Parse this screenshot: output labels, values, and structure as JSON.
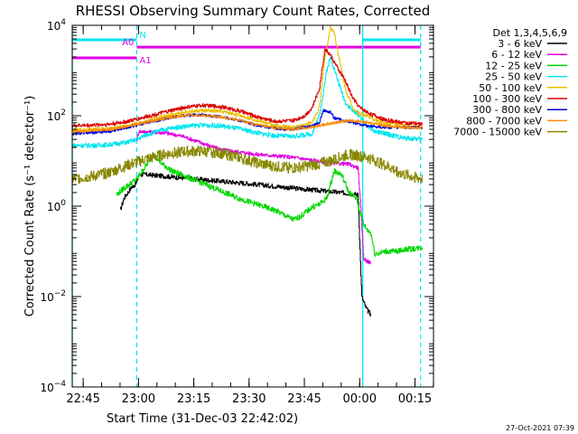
{
  "chart_data": {
    "type": "line",
    "title": "RHESSI Observing Summary Count Rates, Corrected",
    "xlabel": "Start Time (31-Dec-03 22:42:02)",
    "ylabel": "Corrected Count Rate (s⁻¹ detector⁻¹)",
    "yscale": "log",
    "x_units": "minutes after 22:42:02",
    "xlim": [
      0,
      98
    ],
    "ylim": [
      0.0001,
      10000
    ],
    "x_ticks": [
      {
        "value": 2.97,
        "label": "22:45"
      },
      {
        "value": 17.97,
        "label": "23:00"
      },
      {
        "value": 32.97,
        "label": "23:15"
      },
      {
        "value": 47.97,
        "label": "23:30"
      },
      {
        "value": 62.97,
        "label": "23:45"
      },
      {
        "value": 77.97,
        "label": "00:00"
      },
      {
        "value": 92.97,
        "label": "00:15"
      }
    ],
    "y_ticks": [
      {
        "value": 0.0001,
        "base": "10",
        "exp": "−4"
      },
      {
        "value": 0.01,
        "base": "10",
        "exp": "−2"
      },
      {
        "value": 1,
        "base": "10",
        "exp": "0"
      },
      {
        "value": 100,
        "base": "10",
        "exp": "2"
      },
      {
        "value": 10000,
        "base": "10",
        "exp": "4"
      }
    ],
    "legend_title": "Det 1,3,4,5,6,9",
    "legend_position": "right",
    "timestamp": "27-Oct-2021 07:39",
    "attenuator": [
      {
        "label": "N",
        "color": "#00e5ee",
        "segments": [
          [
            0,
            17.5
          ],
          [
            78.8,
            94.5
          ]
        ],
        "level": 4800
      },
      {
        "label": "A0",
        "color": "#e000e0",
        "segments": [
          [
            17.5,
            94.5
          ]
        ],
        "level": 3300
      },
      {
        "label": "A1",
        "color": "#e000e0",
        "segments": [
          [
            0,
            17.5
          ]
        ],
        "level": 1900
      }
    ],
    "vlines": [
      {
        "x": 0,
        "color": "#00e5ee",
        "style": "solid"
      },
      {
        "x": 17.5,
        "color": "#00e5ee",
        "style": "dash"
      },
      {
        "x": 78.8,
        "color": "#00e5ee",
        "style": "solid"
      },
      {
        "x": 94.5,
        "color": "#00e5ee",
        "style": "dash"
      }
    ],
    "series": [
      {
        "name": "3 - 6 keV",
        "color": "#000000",
        "noise": 0.05,
        "x": [
          13,
          14,
          16,
          17,
          17.5,
          18,
          20,
          30,
          45,
          60,
          70,
          75,
          77.5,
          78.5,
          79.5,
          80,
          81
        ],
        "y": [
          0.8,
          1.5,
          2.6,
          3,
          3.5,
          5,
          5,
          4.2,
          3.3,
          2.5,
          2.1,
          1.9,
          1.8,
          0.01,
          0.006,
          0.005,
          0.004
        ]
      },
      {
        "name": "6 - 12 keV",
        "color": "#e000e0",
        "noise": 0.04,
        "x": [
          17.5,
          18,
          25,
          30,
          40,
          50,
          60,
          70,
          75,
          77.5,
          78.5,
          79,
          80,
          81
        ],
        "y": [
          30,
          45,
          42,
          35,
          18,
          14,
          12,
          9,
          8.5,
          7,
          0.4,
          0.07,
          0.06,
          0.055
        ]
      },
      {
        "name": "12 - 25 keV",
        "color": "#00d800",
        "noise": 0.06,
        "x": [
          12,
          14,
          17.5,
          20,
          22,
          24,
          27,
          30,
          35,
          40,
          45,
          50,
          55,
          60,
          62,
          65,
          67,
          69,
          71,
          73,
          75,
          77,
          79,
          80,
          81,
          82,
          83,
          85,
          88,
          90,
          95
        ],
        "y": [
          1.8,
          2.5,
          4,
          8,
          14,
          9,
          6,
          4.8,
          3.3,
          2.2,
          1.5,
          1.1,
          0.8,
          0.5,
          0.6,
          0.95,
          1.1,
          1.5,
          6,
          5,
          2,
          1.5,
          0.4,
          0.3,
          0.25,
          0.09,
          0.09,
          0.1,
          0.1,
          0.11,
          0.12
        ]
      },
      {
        "name": "25 - 50 keV",
        "color": "#00e5ee",
        "noise": 0.05,
        "x": [
          0,
          5,
          10,
          15,
          17.5,
          20,
          25,
          30,
          35,
          40,
          45,
          50,
          55,
          60,
          65,
          67,
          69,
          70,
          72,
          74,
          76,
          78,
          80,
          82,
          85,
          90,
          95
        ],
        "y": [
          22,
          22,
          23,
          26,
          30,
          38,
          50,
          58,
          62,
          60,
          52,
          42,
          36,
          35,
          40,
          100,
          1000,
          2000,
          600,
          200,
          130,
          100,
          60,
          45,
          40,
          32,
          30
        ]
      },
      {
        "name": "50 - 100 keV",
        "color": "#e8c000",
        "noise": 0.04,
        "x": [
          0,
          5,
          10,
          15,
          20,
          25,
          30,
          35,
          40,
          45,
          50,
          55,
          60,
          65,
          67,
          68.5,
          70,
          71,
          72.5,
          74,
          76,
          78,
          80,
          82,
          85,
          90,
          95
        ],
        "y": [
          48,
          50,
          52,
          60,
          75,
          100,
          120,
          130,
          125,
          105,
          80,
          60,
          55,
          70,
          150,
          2000,
          9000,
          7000,
          1600,
          400,
          150,
          110,
          100,
          80,
          70,
          60,
          55
        ]
      },
      {
        "name": "100 - 300 keV",
        "color": "#dd0000",
        "noise": 0.04,
        "x": [
          0,
          5,
          10,
          15,
          20,
          25,
          30,
          35,
          40,
          45,
          50,
          55,
          60,
          63,
          65,
          67,
          68.5,
          70,
          72,
          74,
          76,
          78,
          80,
          82,
          85,
          90,
          95
        ],
        "y": [
          60,
          62,
          65,
          75,
          95,
          120,
          150,
          170,
          160,
          130,
          95,
          75,
          78,
          100,
          150,
          400,
          3000,
          2200,
          1100,
          600,
          250,
          150,
          120,
          100,
          80,
          70,
          65
        ]
      },
      {
        "name": "300 - 800 keV",
        "color": "#0000dd",
        "noise": 0.03,
        "x": [
          0,
          5,
          10,
          15,
          20,
          25,
          30,
          35,
          40,
          45,
          50,
          55,
          60,
          65,
          67,
          68,
          70,
          71,
          73,
          75,
          78,
          80,
          85,
          90,
          95
        ],
        "y": [
          40,
          42,
          45,
          55,
          70,
          85,
          100,
          105,
          95,
          80,
          62,
          52,
          50,
          60,
          70,
          130,
          120,
          90,
          80,
          75,
          65,
          60,
          55,
          55,
          55
        ]
      },
      {
        "name": "800 - 7000 keV",
        "color": "#ff8c00",
        "noise": 0.03,
        "x": [
          0,
          5,
          10,
          15,
          20,
          25,
          30,
          35,
          40,
          45,
          50,
          55,
          60,
          65,
          70,
          75,
          80,
          85,
          90,
          95
        ],
        "y": [
          45,
          47,
          50,
          58,
          72,
          88,
          100,
          103,
          95,
          80,
          63,
          53,
          50,
          56,
          68,
          78,
          72,
          60,
          55,
          54
        ]
      },
      {
        "name": "7000 - 15000 keV",
        "color": "#888800",
        "noise": 0.12,
        "x": [
          0,
          5,
          10,
          15,
          20,
          25,
          30,
          35,
          40,
          45,
          50,
          55,
          60,
          65,
          70,
          75,
          80,
          85,
          90,
          95
        ],
        "y": [
          4,
          4.5,
          5.5,
          8,
          11,
          14,
          16,
          16.5,
          15,
          12,
          9,
          7.5,
          7,
          8,
          10,
          14,
          12,
          8,
          5,
          4
        ]
      }
    ]
  }
}
